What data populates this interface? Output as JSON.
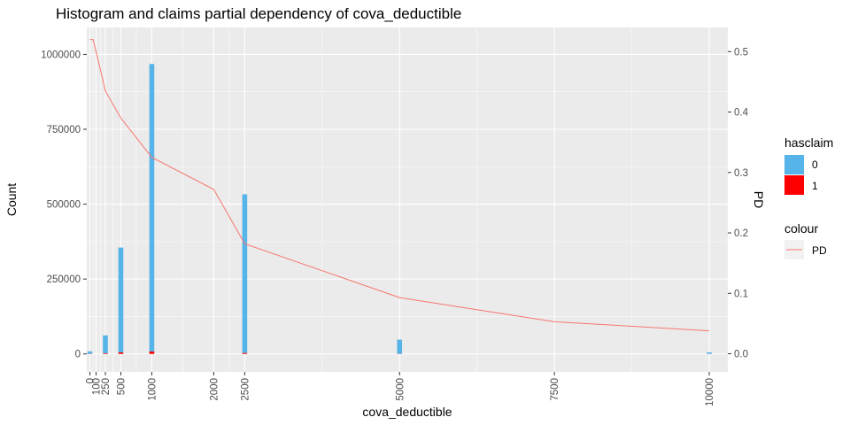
{
  "chart_data": {
    "type": "bar",
    "title": "Histogram and claims partial dependency of cova_deductible",
    "xlabel": "cova_deductible",
    "ylabel": "Count",
    "y2label": "PD",
    "xlim": [
      -50,
      10300
    ],
    "ylim": [
      -60000,
      1090000
    ],
    "y2lim": [
      -0.03,
      0.54
    ],
    "x_ticks": [
      0,
      100,
      250,
      500,
      1000,
      2000,
      2500,
      5000,
      7500,
      10000
    ],
    "y_ticks": [
      0,
      250000,
      500000,
      750000,
      1000000
    ],
    "y2_ticks": [
      0.0,
      0.1,
      0.2,
      0.3,
      0.4,
      0.5
    ],
    "grid": true,
    "legend_position": "right",
    "bars": {
      "bin_width": 80,
      "series": [
        {
          "name": "0",
          "color": "#56B4E9",
          "x": [
            0,
            250,
            500,
            1000,
            2500,
            5000,
            10000
          ],
          "values": [
            8000,
            60000,
            350000,
            960000,
            530000,
            47000,
            5000
          ]
        },
        {
          "name": "1",
          "color": "#FF0000",
          "x": [
            0,
            250,
            500,
            1000,
            2500,
            5000,
            10000
          ],
          "values": [
            500,
            2000,
            5000,
            8000,
            3000,
            500,
            200
          ]
        }
      ]
    },
    "line_series": {
      "name": "PD",
      "color": "#F8766D",
      "x": [
        0,
        50,
        100,
        250,
        500,
        1000,
        2000,
        2500,
        5000,
        7500,
        10000
      ],
      "values": [
        0.52,
        0.52,
        0.5,
        0.435,
        0.39,
        0.325,
        0.272,
        0.182,
        0.093,
        0.053,
        0.038
      ]
    }
  },
  "legend": {
    "fill_title": "hasclaim",
    "fill_items": [
      {
        "label": "0",
        "color": "#56B4E9"
      },
      {
        "label": "1",
        "color": "#FF0000"
      }
    ],
    "colour_title": "colour",
    "colour_items": [
      {
        "label": "PD",
        "color": "#F8766D"
      }
    ]
  },
  "colors": {
    "panel_bg": "#EBEBEB",
    "grid_major": "#FFFFFF",
    "tick_color": "#333333"
  }
}
